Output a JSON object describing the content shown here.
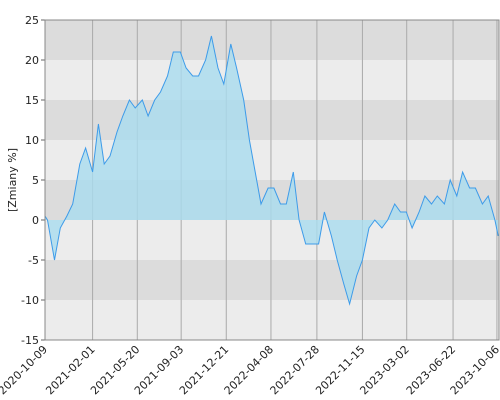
{
  "chart_data": {
    "type": "area",
    "y_label": "[Zmiany %]",
    "x": [
      "2020-10-09",
      "2020-10-15",
      "2020-11-01",
      "2020-11-15",
      "2020-12-01",
      "2020-12-15",
      "2021-01-01",
      "2021-01-15",
      "2021-02-01",
      "2021-02-15",
      "2021-03-01",
      "2021-03-15",
      "2021-04-01",
      "2021-04-15",
      "2021-05-01",
      "2021-05-15",
      "2021-06-01",
      "2021-06-15",
      "2021-07-01",
      "2021-07-15",
      "2021-08-01",
      "2021-08-15",
      "2021-09-01",
      "2021-09-15",
      "2021-10-01",
      "2021-10-15",
      "2021-11-01",
      "2021-11-15",
      "2021-12-01",
      "2021-12-15",
      "2022-01-01",
      "2022-01-15",
      "2022-02-01",
      "2022-02-15",
      "2022-03-01",
      "2022-03-15",
      "2022-04-01",
      "2022-04-15",
      "2022-05-01",
      "2022-05-15",
      "2022-06-01",
      "2022-06-15",
      "2022-07-01",
      "2022-07-15",
      "2022-08-01",
      "2022-08-15",
      "2022-09-01",
      "2022-09-15",
      "2022-10-01",
      "2022-10-15",
      "2022-11-01",
      "2022-11-15",
      "2022-12-01",
      "2022-12-15",
      "2023-01-01",
      "2023-01-15",
      "2023-02-01",
      "2023-02-15",
      "2023-03-01",
      "2023-03-15",
      "2023-04-01",
      "2023-04-15",
      "2023-05-01",
      "2023-05-15",
      "2023-06-01",
      "2023-06-15",
      "2023-07-01",
      "2023-07-15",
      "2023-08-01",
      "2023-08-15",
      "2023-09-01",
      "2023-09-15",
      "2023-10-01",
      "2023-10-09"
    ],
    "values": [
      0.5,
      0,
      -5,
      -1,
      0.5,
      2,
      7,
      9,
      6,
      12,
      7,
      8,
      11,
      13,
      15,
      14,
      15,
      13,
      15,
      16,
      18,
      21,
      21,
      19,
      18,
      18,
      20,
      23,
      19,
      17,
      22,
      19,
      15,
      10,
      6,
      2,
      4,
      4,
      2,
      2,
      6,
      0,
      -3,
      -3,
      -3,
      1,
      -2,
      -5,
      -8,
      -10.5,
      -7,
      -5,
      -1,
      0,
      -1,
      0,
      2,
      1,
      1,
      -1,
      1,
      3,
      2,
      3,
      2,
      5,
      3,
      6,
      4,
      4,
      2,
      3,
      0,
      -2
    ],
    "line_color": "#3d9be9",
    "fill_color": "#a9dcef",
    "xlim": [
      "2020-10-09",
      "2023-10-11"
    ],
    "xticks": [
      "2020-10-09",
      "2021-02-01",
      "2021-05-20",
      "2021-09-03",
      "2021-12-21",
      "2022-04-08",
      "2022-07-28",
      "2022-11-15",
      "2023-03-02",
      "2023-06-22",
      "2023-10-06"
    ],
    "ylim": [
      -15,
      25
    ],
    "yticks": [
      -15,
      -10,
      -5,
      0,
      5,
      10,
      15,
      20,
      25
    ],
    "grid": true
  }
}
